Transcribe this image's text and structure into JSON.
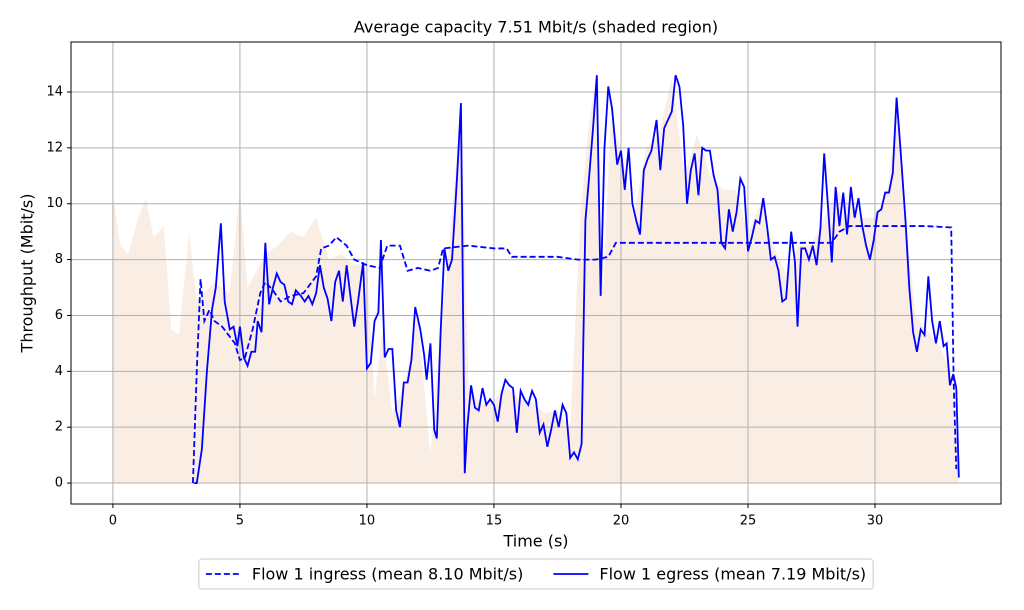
{
  "chart_data": {
    "type": "line",
    "title": "Average capacity 7.51 Mbit/s (shaded region)",
    "x_label": "Time (s)",
    "y_label": "Throughput (Mbit/s)",
    "xlim": [
      -1.65,
      34.96
    ],
    "ylim": [
      -0.75,
      15.79
    ],
    "xticks": [
      0,
      5,
      10,
      15,
      20,
      25,
      30
    ],
    "yticks": [
      0,
      2,
      4,
      6,
      8,
      10,
      12,
      14
    ],
    "grid": true,
    "legend": "bottom",
    "shaded_area": {
      "color": "#faeee4",
      "x": [
        0,
        0.3,
        0.6,
        1,
        1.3,
        1.6,
        2,
        2.3,
        2.6,
        3,
        3.3,
        3.6,
        4,
        4.3,
        4.6,
        5,
        5.3,
        5.6,
        6,
        6.5,
        7,
        7.5,
        8,
        8.5,
        9,
        9.5,
        10,
        10.3,
        10.6,
        11,
        11.5,
        12,
        12.5,
        12.8,
        13.2,
        13.7,
        14,
        14.5,
        15,
        15.5,
        16,
        16.5,
        17,
        17.5,
        18,
        18.4,
        18.7,
        19,
        19.3,
        19.6,
        20,
        20.5,
        21,
        21.5,
        22,
        22.5,
        23,
        23.5,
        24,
        24.5,
        25,
        25.5,
        26,
        26.5,
        27,
        27.5,
        28,
        28.5,
        29,
        29.5,
        30,
        30.5,
        30.85,
        31.2,
        31.6,
        32,
        32.5,
        33,
        33.3
      ],
      "values": [
        10.3,
        8.5,
        8.2,
        9.5,
        10.2,
        8.8,
        9.2,
        5.5,
        5.3,
        9.0,
        6.5,
        6.8,
        7.2,
        7.0,
        6.8,
        10.5,
        7.0,
        7.5,
        8.2,
        8.5,
        9.0,
        8.8,
        9.5,
        8.0,
        8.2,
        7.8,
        7.9,
        3.0,
        5.5,
        2.5,
        3.6,
        6.0,
        1.0,
        4.5,
        8.0,
        13.5,
        3.5,
        2.8,
        3.0,
        3.4,
        3.0,
        2.9,
        2.5,
        2.6,
        2.0,
        9.5,
        12.5,
        14.5,
        7.0,
        13.0,
        12.0,
        9.5,
        12.0,
        12.5,
        14.5,
        11.0,
        12.5,
        11.0,
        10.5,
        10.5,
        9.0,
        10.0,
        8.5,
        7.5,
        8.5,
        8.5,
        9.5,
        10.5,
        10.0,
        9.5,
        9.5,
        10.5,
        13.5,
        9.5,
        6.0,
        5.5,
        5.0,
        4.0,
        0
      ]
    },
    "series": [
      {
        "name": "Flow 1 ingress (mean 8.10 Mbit/s)",
        "color": "#0000ff",
        "linestyle": "dashed",
        "x": [
          3.15,
          3.3,
          3.45,
          3.6,
          3.8,
          4,
          4.3,
          4.8,
          5,
          5.2,
          5.5,
          5.8,
          6,
          6.3,
          6.6,
          7,
          7.5,
          8,
          8.2,
          8.5,
          8.8,
          9.2,
          9.5,
          10,
          10.5,
          10.8,
          11.3,
          11.6,
          12,
          12.5,
          12.8,
          13,
          14,
          15,
          15.5,
          15.7,
          16.5,
          17.5,
          18.3,
          19,
          19.5,
          19.8,
          21,
          22,
          22.5,
          24,
          25,
          26,
          27,
          28.3,
          28.6,
          29,
          30,
          31,
          32,
          33,
          33.1,
          33.2
        ],
        "values": [
          0,
          4,
          7.3,
          5.8,
          6.2,
          5.8,
          5.6,
          5.0,
          4.4,
          4.5,
          5.5,
          6.8,
          7.2,
          6.9,
          6.5,
          6.7,
          6.8,
          7.4,
          8.4,
          8.5,
          8.8,
          8.5,
          8.0,
          7.8,
          7.7,
          8.5,
          8.5,
          7.6,
          7.7,
          7.6,
          7.7,
          8.4,
          8.5,
          8.4,
          8.4,
          8.1,
          8.1,
          8.1,
          8.0,
          8.0,
          8.1,
          8.6,
          8.6,
          8.6,
          8.6,
          8.6,
          8.6,
          8.6,
          8.6,
          8.6,
          9.0,
          9.2,
          9.2,
          9.2,
          9.2,
          9.15,
          3.5,
          0.5
        ]
      },
      {
        "name": "Flow 1 egress (mean 7.19 Mbit/s)",
        "color": "#0000ff",
        "linestyle": "solid",
        "x": [
          3.2,
          3.3,
          3.5,
          3.7,
          3.9,
          4.05,
          4.25,
          4.4,
          4.6,
          4.75,
          4.9,
          5.0,
          5.15,
          5.3,
          5.45,
          5.6,
          5.7,
          5.85,
          6.0,
          6.15,
          6.3,
          6.45,
          6.6,
          6.75,
          6.9,
          7.05,
          7.2,
          7.4,
          7.55,
          7.7,
          7.85,
          8.0,
          8.15,
          8.3,
          8.45,
          8.6,
          8.75,
          8.9,
          9.05,
          9.2,
          9.35,
          9.5,
          9.65,
          9.85,
          10.0,
          10.15,
          10.3,
          10.45,
          10.55,
          10.7,
          10.85,
          11.0,
          11.15,
          11.3,
          11.45,
          11.6,
          11.75,
          11.9,
          12.1,
          12.25,
          12.35,
          12.5,
          12.65,
          12.75,
          12.9,
          13.05,
          13.2,
          13.35,
          13.55,
          13.7,
          13.85,
          13.95,
          14.1,
          14.25,
          14.4,
          14.55,
          14.7,
          14.85,
          15.0,
          15.15,
          15.3,
          15.45,
          15.6,
          15.75,
          15.9,
          16.05,
          16.2,
          16.35,
          16.5,
          16.65,
          16.8,
          16.95,
          17.1,
          17.25,
          17.4,
          17.55,
          17.7,
          17.85,
          18.0,
          18.15,
          18.3,
          18.45,
          18.6,
          18.75,
          18.9,
          19.05,
          19.2,
          19.35,
          19.5,
          19.65,
          19.85,
          20.0,
          20.15,
          20.3,
          20.45,
          20.6,
          20.75,
          20.9,
          21.05,
          21.2,
          21.4,
          21.55,
          21.7,
          21.85,
          22.0,
          22.15,
          22.3,
          22.45,
          22.6,
          22.75,
          22.9,
          23.05,
          23.2,
          23.35,
          23.5,
          23.65,
          23.8,
          23.95,
          24.1,
          24.25,
          24.4,
          24.55,
          24.7,
          24.85,
          25.0,
          25.15,
          25.3,
          25.45,
          25.6,
          25.75,
          25.9,
          26.05,
          26.2,
          26.35,
          26.5,
          26.7,
          26.85,
          26.95,
          27.1,
          27.25,
          27.4,
          27.55,
          27.7,
          27.85,
          28.0,
          28.15,
          28.3,
          28.45,
          28.6,
          28.75,
          28.9,
          29.05,
          29.2,
          29.35,
          29.5,
          29.65,
          29.8,
          29.95,
          30.1,
          30.25,
          30.4,
          30.55,
          30.7,
          30.85,
          31.0,
          31.2,
          31.35,
          31.5,
          31.65,
          31.8,
          31.95,
          32.1,
          32.25,
          32.4,
          32.55,
          32.7,
          32.82,
          32.95,
          33.08,
          33.2,
          33.3
        ],
        "values": [
          0,
          0,
          1.2,
          4,
          6.2,
          7.0,
          9.3,
          6.5,
          5.5,
          5.6,
          4.9,
          5.6,
          4.5,
          4.2,
          4.7,
          4.7,
          5.8,
          5.4,
          8.6,
          6.4,
          7.0,
          7.5,
          7.2,
          7.1,
          6.5,
          6.4,
          6.9,
          6.7,
          6.5,
          6.7,
          6.4,
          6.8,
          7.8,
          7.0,
          6.6,
          5.8,
          7.2,
          7.6,
          6.5,
          7.8,
          6.7,
          5.6,
          6.5,
          7.9,
          4.1,
          4.3,
          5.8,
          6.1,
          8.7,
          4.5,
          4.8,
          4.8,
          2.6,
          2.0,
          3.6,
          3.6,
          4.4,
          6.3,
          5.5,
          4.6,
          3.7,
          5.0,
          1.9,
          1.6,
          5.4,
          8.4,
          7.6,
          8.0,
          11.0,
          13.6,
          0.35,
          2.0,
          3.5,
          2.7,
          2.6,
          3.4,
          2.8,
          3.0,
          2.8,
          2.2,
          3.2,
          3.7,
          3.5,
          3.4,
          1.8,
          3.3,
          3.0,
          2.8,
          3.3,
          3.0,
          1.8,
          2.1,
          1.3,
          1.9,
          2.6,
          2.0,
          2.8,
          2.5,
          0.9,
          1.1,
          0.85,
          1.4,
          9.4,
          11.0,
          12.7,
          14.6,
          6.7,
          12.0,
          14.2,
          13.4,
          11.4,
          11.9,
          10.5,
          12.0,
          10.0,
          9.4,
          8.9,
          11.2,
          11.6,
          11.9,
          13.0,
          11.2,
          12.7,
          13.0,
          13.3,
          14.6,
          14.2,
          12.8,
          10.0,
          11.2,
          11.8,
          10.3,
          12.0,
          11.9,
          11.9,
          11.0,
          10.5,
          8.6,
          8.4,
          9.8,
          9.0,
          9.7,
          10.9,
          10.6,
          8.3,
          8.8,
          9.4,
          9.3,
          10.2,
          9.2,
          8.0,
          8.1,
          7.6,
          6.5,
          6.6,
          9.0,
          7.9,
          5.6,
          8.4,
          8.4,
          8.0,
          8.5,
          7.8,
          9.1,
          11.8,
          9.9,
          7.9,
          10.6,
          9.2,
          10.4,
          8.9,
          10.6,
          9.5,
          10.2,
          9.2,
          8.5,
          8.0,
          8.7,
          9.7,
          9.8,
          10.4,
          10.4,
          11.1,
          13.8,
          12.0,
          9.4,
          7.0,
          5.4,
          4.7,
          5.5,
          5.3,
          7.4,
          5.8,
          5.0,
          5.8,
          4.9,
          5.0,
          3.5,
          3.9,
          3.4,
          0.2
        ]
      }
    ]
  }
}
